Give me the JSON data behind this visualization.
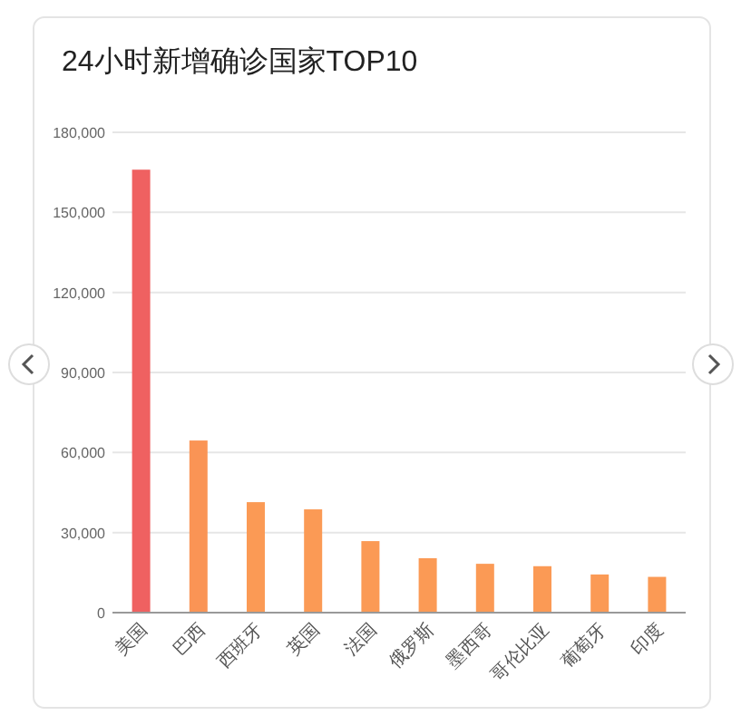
{
  "chart_data": {
    "type": "bar",
    "title": "24小时新增确诊国家TOP10",
    "categories": [
      "美国",
      "巴西",
      "西班牙",
      "英国",
      "法国",
      "俄罗斯",
      "墨西哥",
      "哥伦比亚",
      "葡萄牙",
      "印度"
    ],
    "values": [
      166000,
      64500,
      41400,
      38700,
      26800,
      20400,
      18300,
      17400,
      14300,
      13400
    ],
    "colors": [
      "#ef6161",
      "#fa9455",
      "#fb9a55",
      "#fb9a55",
      "#fb9a55",
      "#fb9a55",
      "#fb9a55",
      "#fb9a55",
      "#fb9a55",
      "#fb9a55"
    ],
    "ylim": [
      0,
      180000
    ],
    "yticks": [
      {
        "value": 0,
        "label": "0"
      },
      {
        "value": 30000,
        "label": "30,000"
      },
      {
        "value": 60000,
        "label": "60,000"
      },
      {
        "value": 90000,
        "label": "90,000"
      },
      {
        "value": 120000,
        "label": "120,000"
      },
      {
        "value": 150000,
        "label": "150,000"
      },
      {
        "value": 180000,
        "label": "180,000"
      }
    ],
    "grid": "y"
  }
}
